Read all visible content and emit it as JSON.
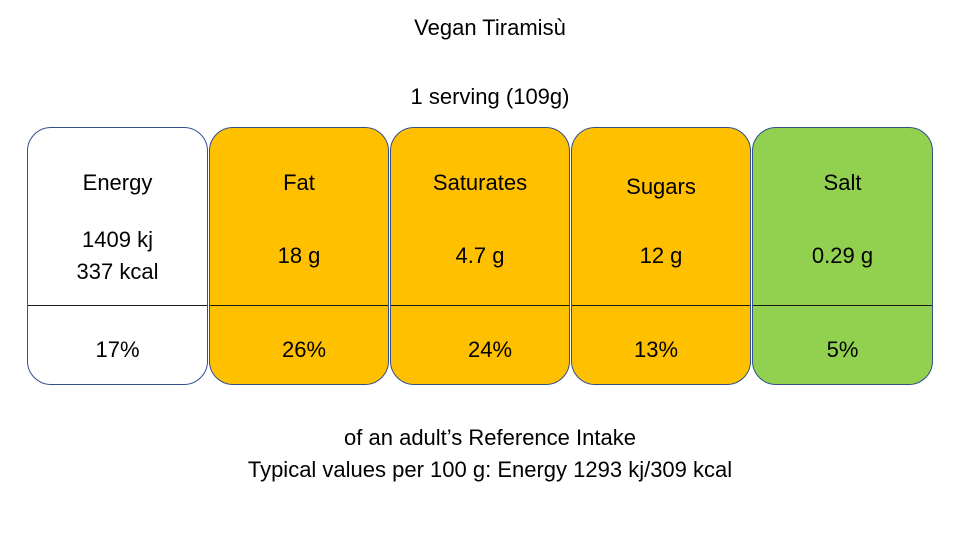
{
  "title": "Vegan Tiramisù",
  "serving": "1 serving (109g)",
  "nutrients": [
    {
      "label": "Energy",
      "amount_lines": [
        "1409 kj",
        "337 kcal"
      ],
      "percent": "17%",
      "color": "#ffffff"
    },
    {
      "label": "Fat",
      "amount": "18 g",
      "percent": "26%",
      "color": "#ffc000"
    },
    {
      "label": "Saturates",
      "amount": "4.7 g",
      "percent": "24%",
      "color": "#ffc000"
    },
    {
      "label": "Sugars",
      "amount": "12 g",
      "percent": "13%",
      "color": "#ffc000"
    },
    {
      "label": "Salt",
      "amount": "0.29 g",
      "percent": "5%",
      "color": "#92d050"
    }
  ],
  "footer": {
    "reference": "of an adult’s Reference Intake",
    "typical": "Typical values per 100 g: Energy 1293 kj/309 kcal"
  }
}
